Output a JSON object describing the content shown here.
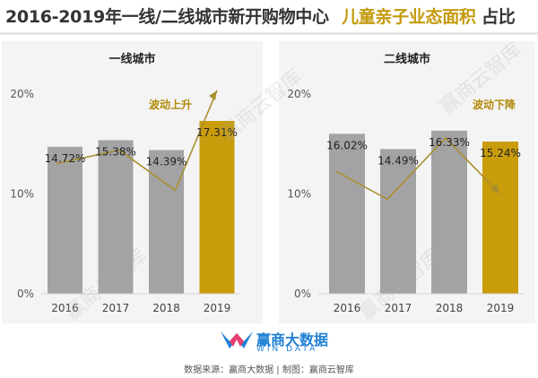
{
  "title": {
    "part1": "2016-2019年一线/二线城市新开购物中心",
    "part2": "儿童亲子业态面积",
    "part3": "占比"
  },
  "colors": {
    "gray_bar": "#a3a3a6",
    "gold_bar": "#c99c0c",
    "trend": "#a98f2c",
    "annotation": "#b38a0a"
  },
  "chart_data": [
    {
      "type": "bar",
      "title": "一线城市",
      "categories": [
        "2016",
        "2017",
        "2018",
        "2019"
      ],
      "values": [
        14.72,
        15.38,
        14.39,
        17.31
      ],
      "labels": [
        "14.72%",
        "15.38%",
        "14.39%",
        "17.31%"
      ],
      "highlight_index": 3,
      "yticks": [
        "0%",
        "10%",
        "20%"
      ],
      "ylim": [
        0,
        20
      ],
      "annotation": "波动上升",
      "grid": false
    },
    {
      "type": "bar",
      "title": "二线城市",
      "categories": [
        "2016",
        "2017",
        "2018",
        "2019"
      ],
      "values": [
        16.02,
        14.49,
        16.33,
        15.24
      ],
      "labels": [
        "16.02%",
        "14.49%",
        "16.33%",
        "15.24%"
      ],
      "highlight_index": 3,
      "yticks": [
        "0%",
        "10%",
        "20%"
      ],
      "ylim": [
        0,
        20
      ],
      "annotation": "波动下降",
      "grid": false
    }
  ],
  "watermark": "赢商云智库",
  "footer": {
    "brand": "赢商大数据",
    "brand_en": "WIN DATA",
    "source": "数据来源：赢商大数据 | 制图：赢商云智库"
  }
}
